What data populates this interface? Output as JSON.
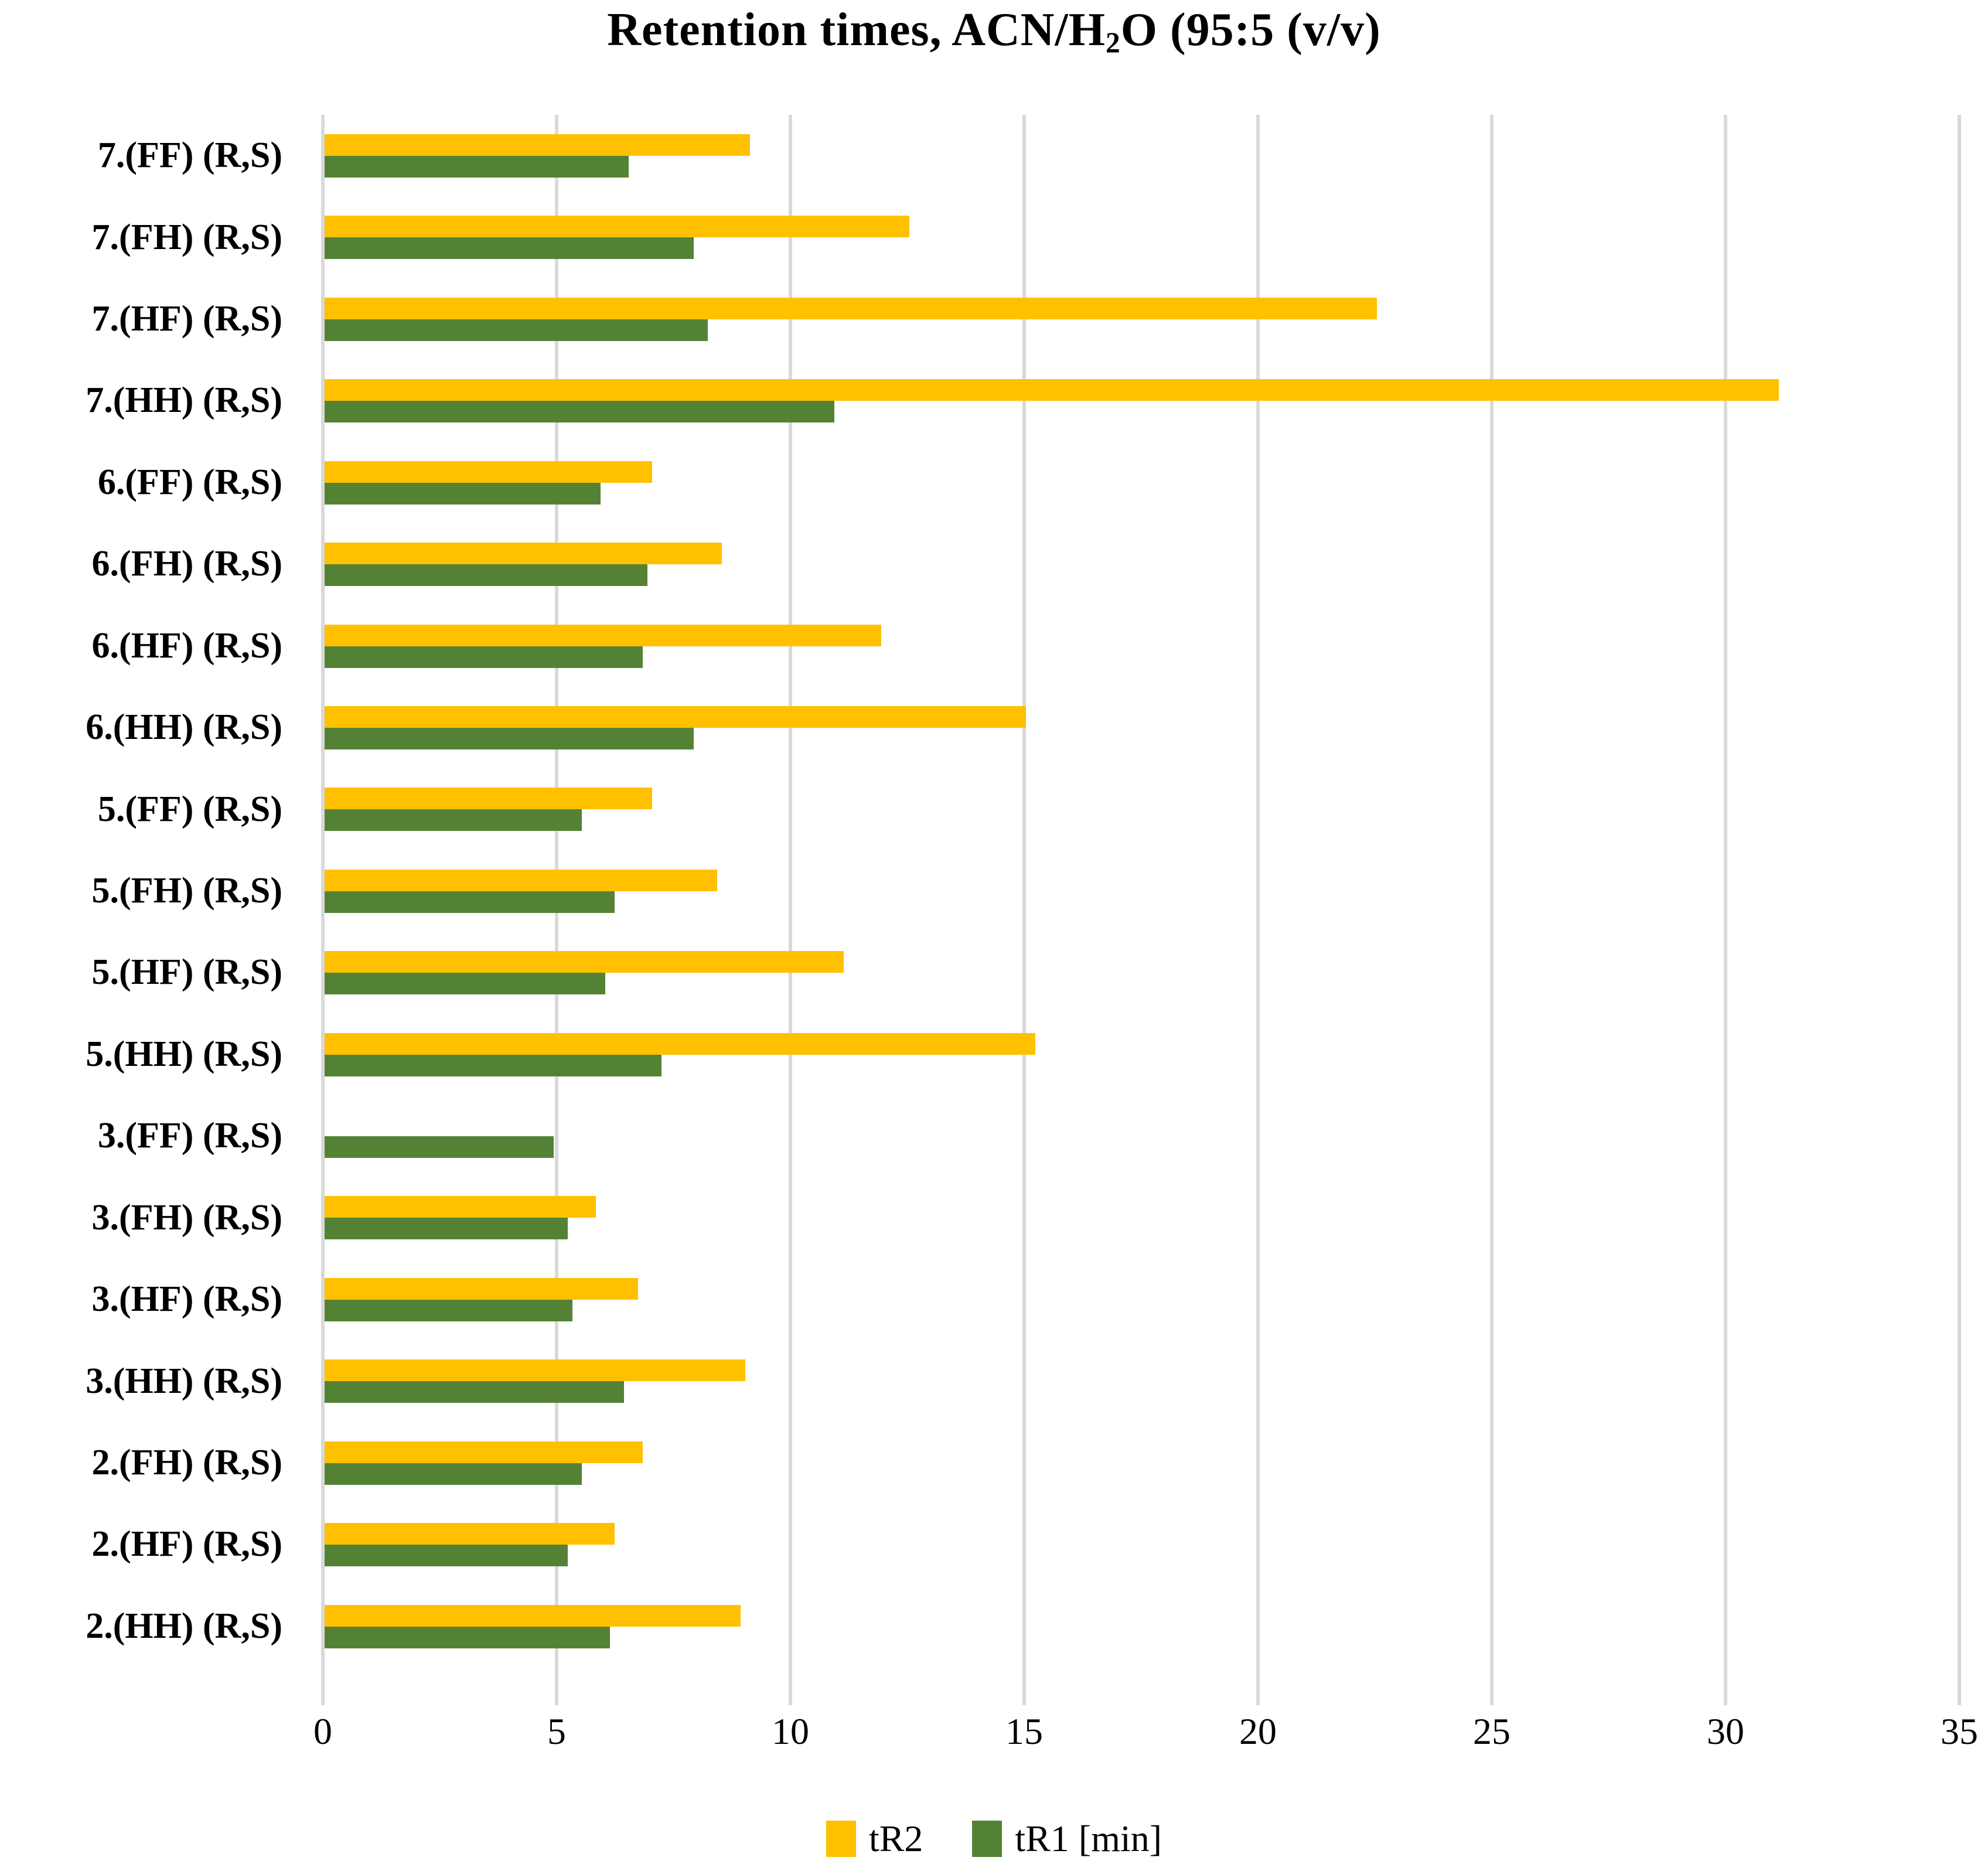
{
  "title": {
    "prefix": "Retention times, ACN/H",
    "subscript": "2",
    "suffix": "O (95:5 (v/v)"
  },
  "legend": [
    {
      "name": "tR2",
      "color": "#FFC000"
    },
    {
      "name": "tR1 [min]",
      "color": "#548235"
    }
  ],
  "chart_data": {
    "type": "bar",
    "orientation": "horizontal",
    "title": "Retention times, ACN/H2O (95:5 (v/v)",
    "categories": [
      "7.(FF) (R,S)",
      "7.(FH) (R,S)",
      "7.(HF) (R,S)",
      "7.(HH) (R,S)",
      "6.(FF) (R,S)",
      "6.(FH) (R,S)",
      "6.(HF) (R,S)",
      "6.(HH) (R,S)",
      "5.(FF) (R,S)",
      "5.(FH) (R,S)",
      "5.(HF) (R,S)",
      "5.(HH) (R,S)",
      "3.(FF) (R,S)",
      "3.(FH) (R,S)",
      "3.(HF) (R,S)",
      "3.(HH) (R,S)",
      "2.(FH) (R,S)",
      "2.(HF) (R,S)",
      "2.(HH) (R,S)"
    ],
    "series": [
      {
        "name": "tR2",
        "color": "#FFC000",
        "values": [
          9.1,
          12.5,
          22.5,
          31.1,
          7.0,
          8.5,
          11.9,
          15.0,
          7.0,
          8.4,
          11.1,
          15.2,
          0,
          5.8,
          6.7,
          9.0,
          6.8,
          6.2,
          8.9
        ]
      },
      {
        "name": "tR1 [min]",
        "color": "#548235",
        "values": [
          6.5,
          7.9,
          8.2,
          10.9,
          5.9,
          6.9,
          6.8,
          7.9,
          5.5,
          6.2,
          6.0,
          7.2,
          4.9,
          5.2,
          5.3,
          6.4,
          5.5,
          5.2,
          6.1
        ]
      }
    ],
    "xlabel": "",
    "ylabel": "",
    "xlim": [
      0,
      35
    ],
    "xticks": [
      0,
      5,
      10,
      15,
      20,
      25,
      30,
      35
    ],
    "grid": true,
    "gridline_color": "#d9d9d9",
    "legend_position": "bottom"
  }
}
